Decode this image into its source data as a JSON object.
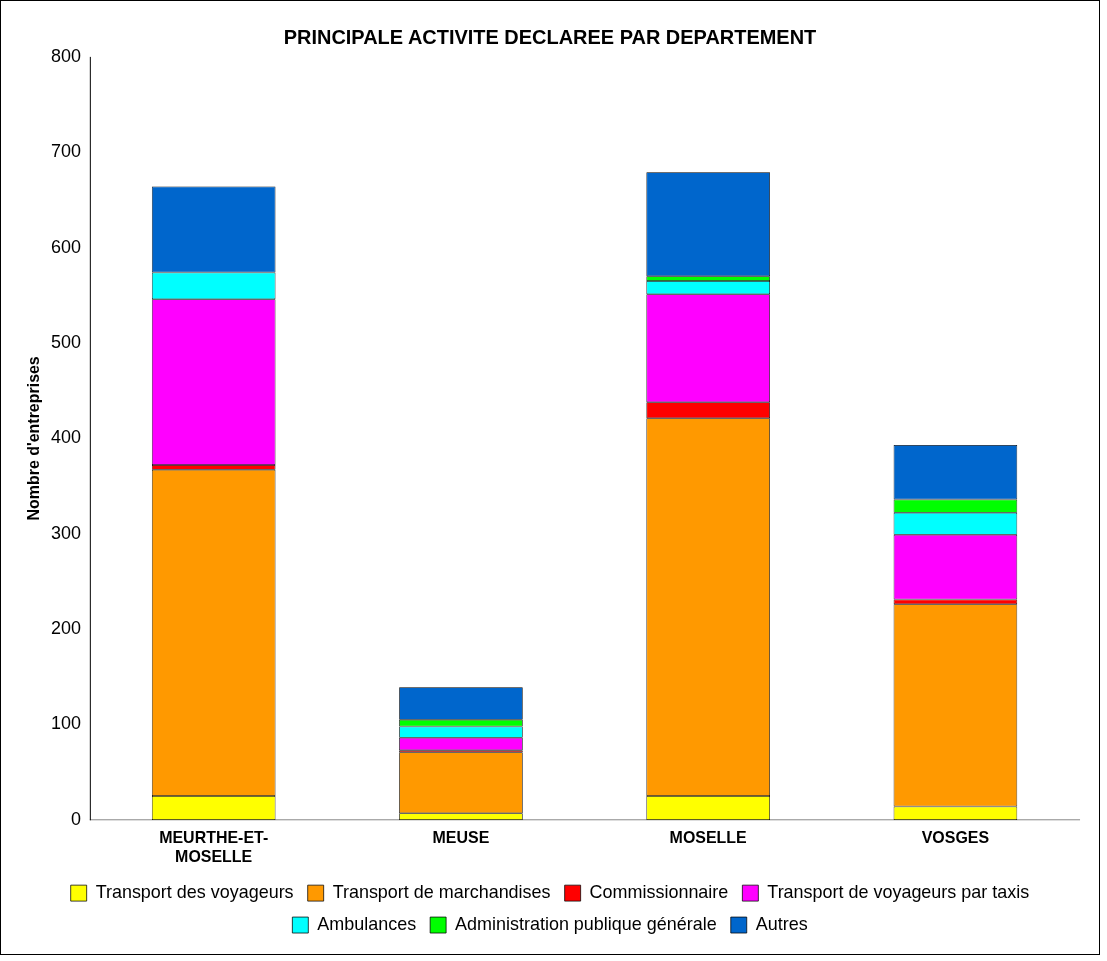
{
  "chart_data": {
    "type": "bar",
    "title": "PRINCIPALE ACTIVITE DECLAREE PAR DEPARTEMENT",
    "ylabel": "Nombre d'entreprises",
    "categories": [
      "MEURTHE-ET-MOSELLE",
      "MEUSE",
      "MOSELLE",
      "VOSGES"
    ],
    "stacked": true,
    "series": [
      {
        "name": "Transport des voyageurs",
        "color": "#ffff00",
        "values": [
          25,
          7,
          25,
          14
        ]
      },
      {
        "name": "Transport de marchandises",
        "color": "#ff9900",
        "values": [
          342,
          64,
          396,
          212
        ]
      },
      {
        "name": "Commissionnaire",
        "color": "#ff0000",
        "values": [
          5,
          2,
          17,
          5
        ]
      },
      {
        "name": "Transport de voyageurs par taxis",
        "color": "#ff00ff",
        "values": [
          174,
          13,
          113,
          68
        ]
      },
      {
        "name": "Ambulances",
        "color": "#00ffff",
        "values": [
          28,
          12,
          14,
          23
        ]
      },
      {
        "name": "Administration publique générale",
        "color": "#00ff00",
        "values": [
          0,
          7,
          5,
          14
        ]
      },
      {
        "name": "Autres",
        "color": "#0066cc",
        "values": [
          90,
          34,
          109,
          57
        ]
      }
    ],
    "ylim": [
      0,
      800
    ],
    "yticks": [
      0,
      100,
      200,
      300,
      400,
      500,
      600,
      700,
      800
    ],
    "grid": false,
    "legend": "bottom"
  }
}
